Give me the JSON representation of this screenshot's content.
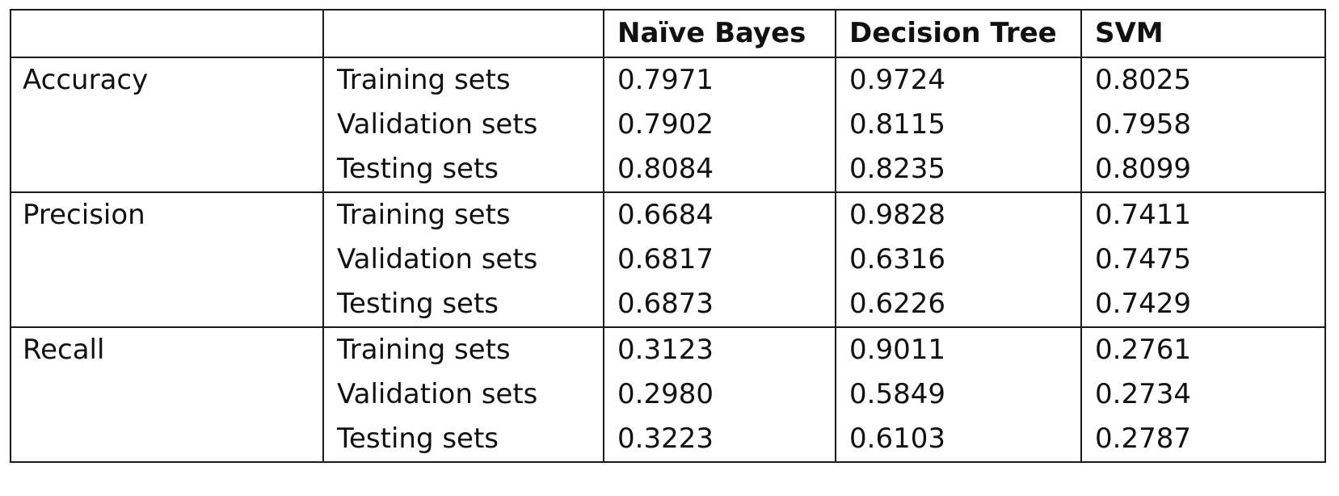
{
  "table": {
    "header": [
      "",
      "",
      "Naïve Bayes",
      "Decision Tree",
      "SVM"
    ],
    "groups": [
      {
        "metric": "Accuracy",
        "rows": [
          {
            "set": "Training sets",
            "values": [
              "0.7971",
              "0.9724",
              "0.8025"
            ]
          },
          {
            "set": "Validation sets",
            "values": [
              "0.7902",
              "0.8115",
              "0.7958"
            ]
          },
          {
            "set": "Testing sets",
            "values": [
              "0.8084",
              "0.8235",
              "0.8099"
            ]
          }
        ]
      },
      {
        "metric": "Precision",
        "rows": [
          {
            "set": "Training sets",
            "values": [
              "0.6684",
              "0.9828",
              "0.7411"
            ]
          },
          {
            "set": "Validation sets",
            "values": [
              "0.6817",
              "0.6316",
              "0.7475"
            ]
          },
          {
            "set": "Testing sets",
            "values": [
              "0.6873",
              "0.6226",
              "0.7429"
            ]
          }
        ]
      },
      {
        "metric": "Recall",
        "rows": [
          {
            "set": "Training sets",
            "values": [
              "0.3123",
              "0.9011",
              "0.2761"
            ]
          },
          {
            "set": "Validation sets",
            "values": [
              "0.2980",
              "0.5849",
              "0.2734"
            ]
          },
          {
            "set": "Testing sets",
            "values": [
              "0.3223",
              "0.6103",
              "0.2787"
            ]
          }
        ]
      }
    ]
  }
}
